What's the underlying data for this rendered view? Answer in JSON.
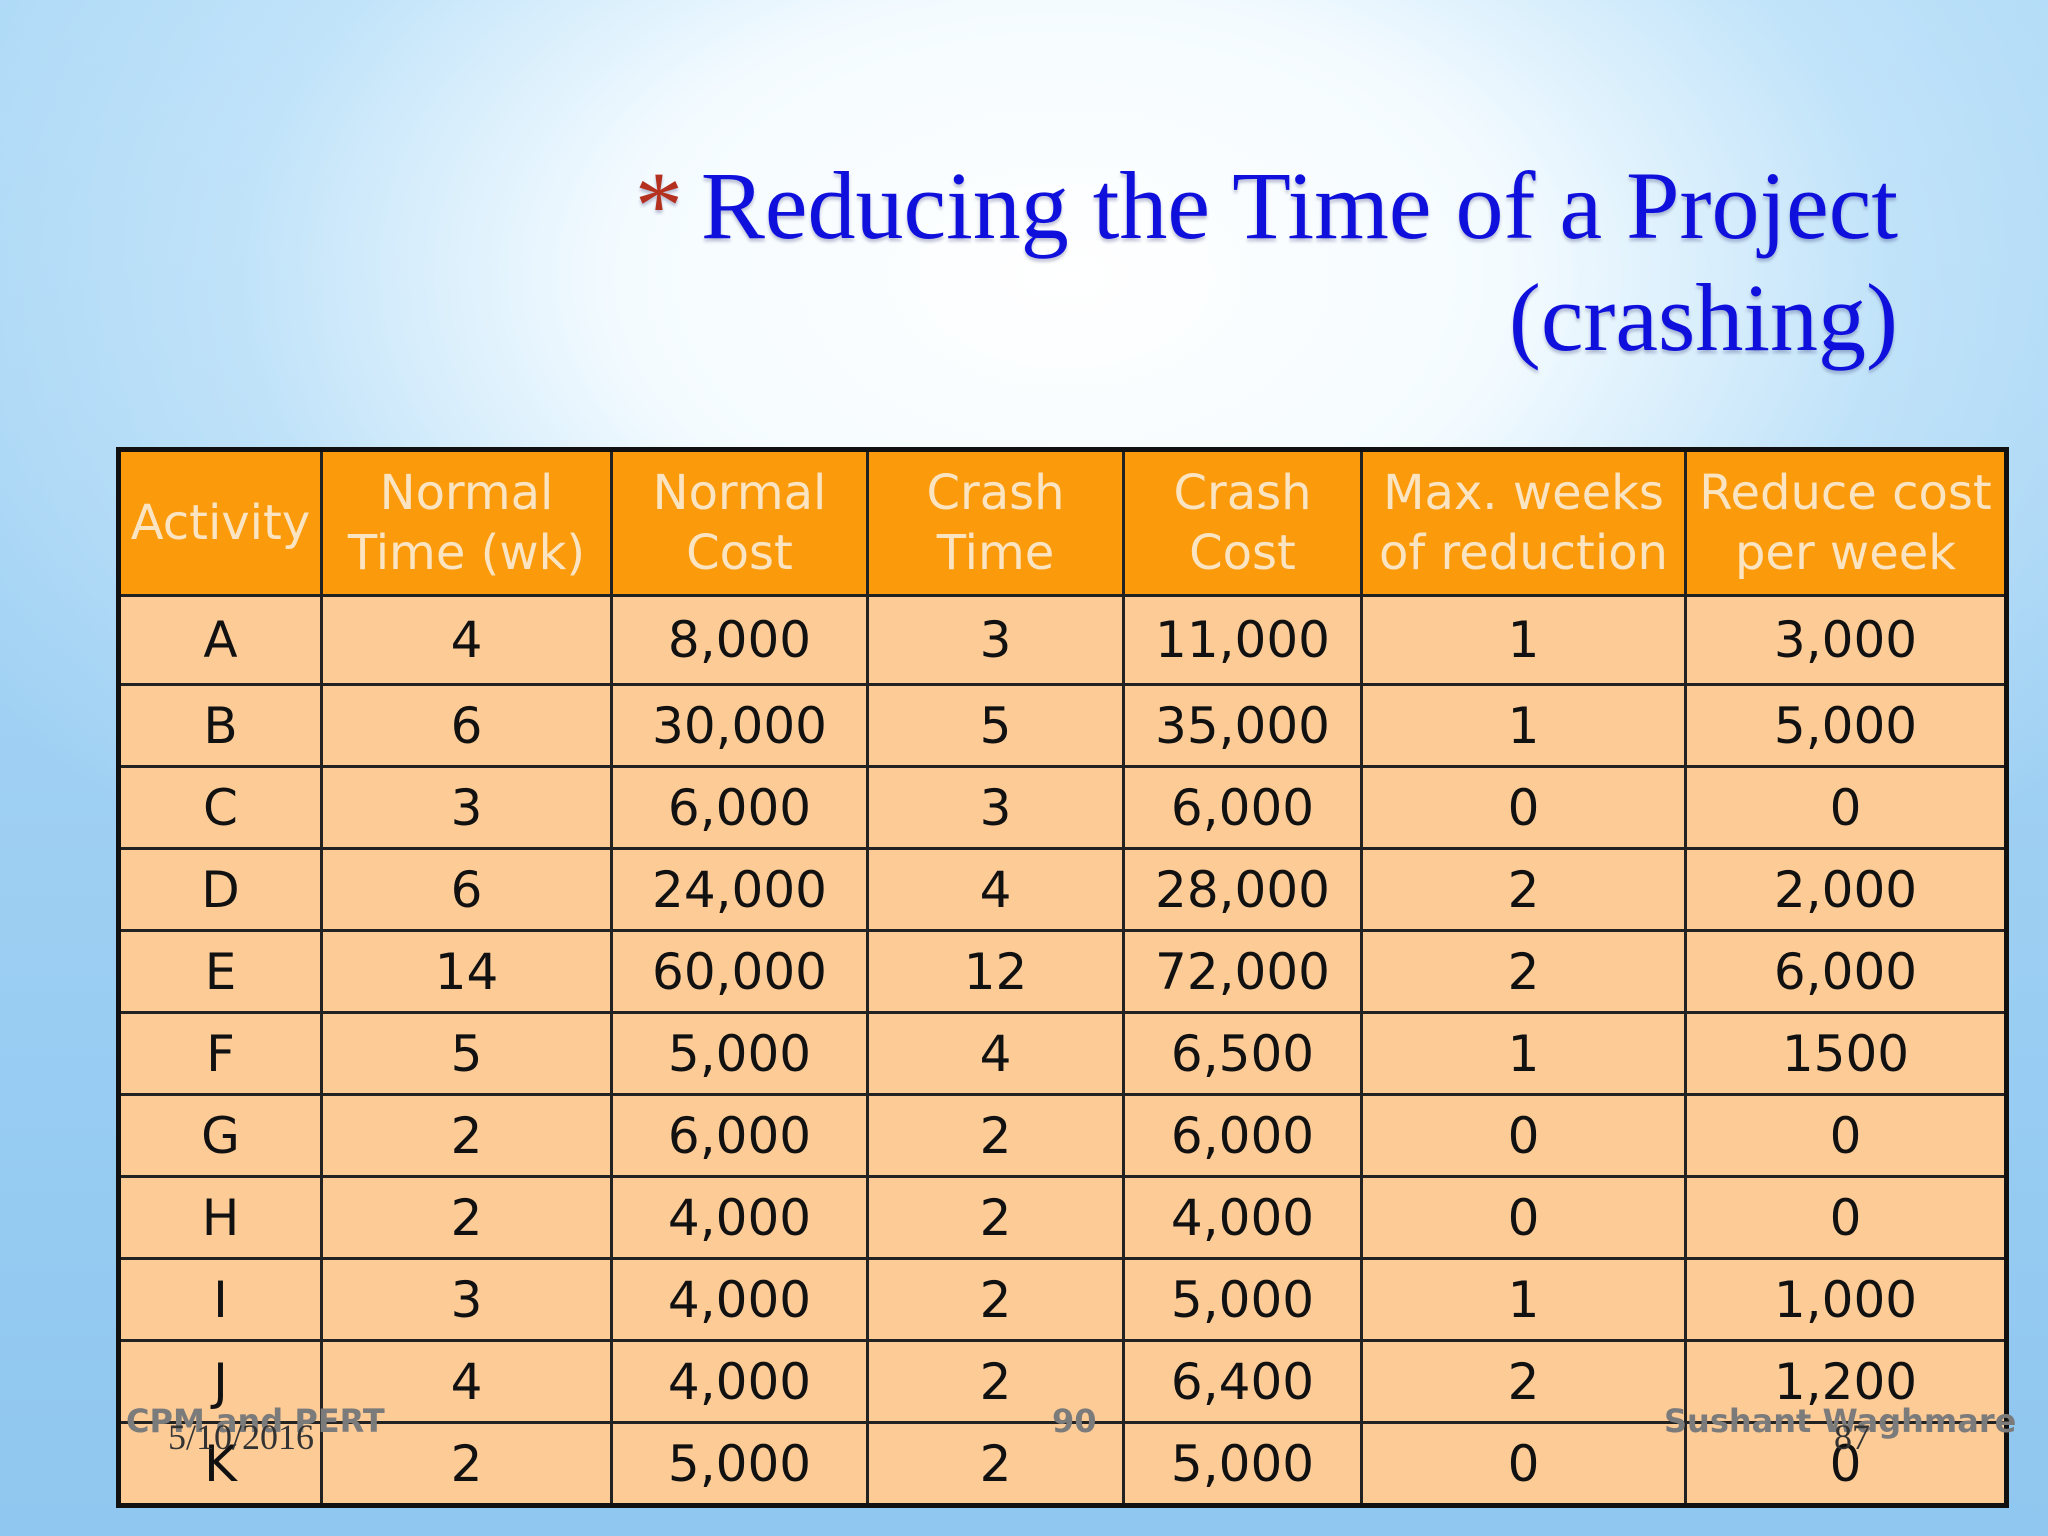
{
  "title": {
    "bullet": "*",
    "line1": "Reducing the Time of a Project",
    "line2": "(crashing)"
  },
  "table": {
    "headers": [
      [
        "Activity",
        ""
      ],
      [
        "Normal",
        "Time (wk)"
      ],
      [
        "Normal",
        "Cost"
      ],
      [
        "Crash",
        "Time"
      ],
      [
        "Crash",
        "Cost"
      ],
      [
        "Max. weeks",
        "of reduction"
      ],
      [
        "Reduce cost",
        "per week"
      ]
    ],
    "rows": [
      [
        "A",
        "4",
        "8,000",
        "3",
        "11,000",
        "1",
        "3,000"
      ],
      [
        "B",
        "6",
        "30,000",
        "5",
        "35,000",
        "1",
        "5,000"
      ],
      [
        "C",
        "3",
        "6,000",
        "3",
        "6,000",
        "0",
        "0"
      ],
      [
        "D",
        "6",
        "24,000",
        "4",
        "28,000",
        "2",
        "2,000"
      ],
      [
        "E",
        "14",
        "60,000",
        "12",
        "72,000",
        "2",
        "6,000"
      ],
      [
        "F",
        "5",
        "5,000",
        "4",
        "6,500",
        "1",
        "1500"
      ],
      [
        "G",
        "2",
        "6,000",
        "2",
        "6,000",
        "0",
        "0"
      ],
      [
        "H",
        "2",
        "4,000",
        "2",
        "4,000",
        "0",
        "0"
      ],
      [
        "I",
        "3",
        "4,000",
        "2",
        "5,000",
        "1",
        "1,000"
      ],
      [
        "J",
        "4",
        "4,000",
        "2",
        "6,400",
        "2",
        "1,200"
      ],
      [
        "K",
        "2",
        "5,000",
        "2",
        "5,000",
        "0",
        "0"
      ]
    ]
  },
  "footer": {
    "left": "CPM and PERT",
    "center": "90",
    "right": "Sushant Waghmare",
    "date": "5/10/2016",
    "slide_number": "87"
  }
}
